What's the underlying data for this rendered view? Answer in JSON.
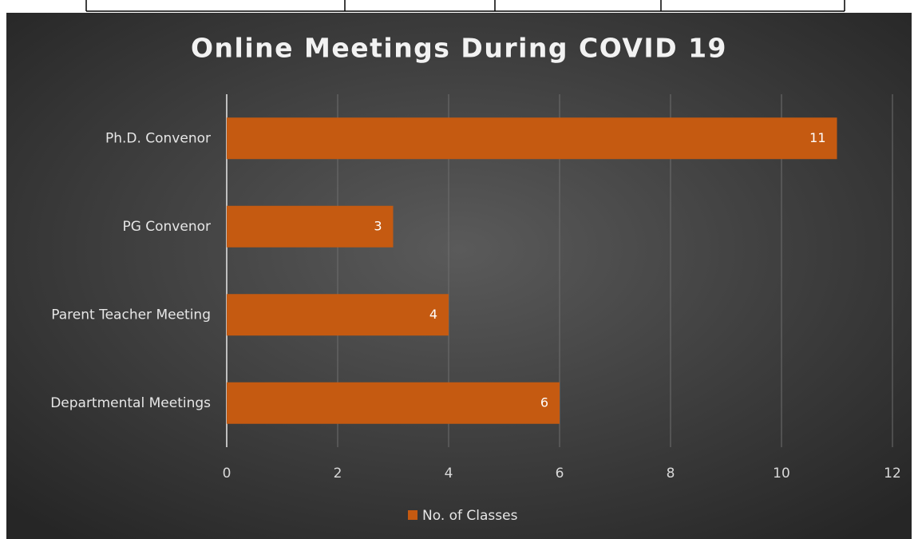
{
  "chart_data": {
    "type": "hbar",
    "title": "Online Meetings During COVID 19",
    "categories": [
      "Ph.D. Convenor",
      "PG Convenor",
      "Parent Teacher Meeting",
      "Departmental Meetings"
    ],
    "series": [
      {
        "name": "No. of Classes",
        "color": "#c55a11",
        "values": [
          11,
          3,
          4,
          6
        ]
      }
    ],
    "xlim": [
      0,
      12
    ],
    "xticks": [
      0,
      2,
      4,
      6,
      8,
      10,
      12
    ],
    "grid": true,
    "legend": "bottom"
  }
}
